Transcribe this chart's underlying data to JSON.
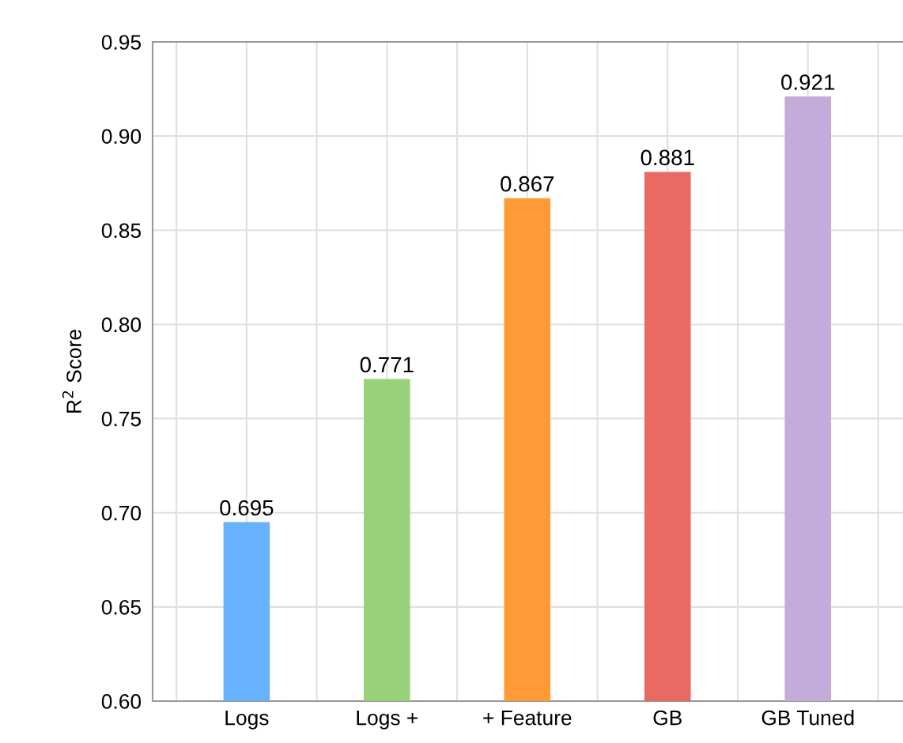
{
  "chart_data": {
    "type": "bar",
    "ylabel": "R$^{2}$ Score",
    "categories": [
      "Logs",
      "Logs +",
      "+ Feature",
      "GB",
      "GB Tuned"
    ],
    "values": [
      0.695,
      0.771,
      0.867,
      0.881,
      0.921
    ],
    "colors": [
      "#66b2ff",
      "#99d17a",
      "#ff9a35",
      "#e86a63",
      "#c3acd9"
    ],
    "data_labels": true,
    "ylim": [
      0.6,
      0.95
    ],
    "yticks": [
      {
        "value": 0.6,
        "label": "0.60"
      },
      {
        "value": 0.65,
        "label": "0.65"
      },
      {
        "value": 0.7,
        "label": "0.70"
      },
      {
        "value": 0.75,
        "label": "0.75"
      },
      {
        "value": 0.8,
        "label": "0.80"
      },
      {
        "value": 0.85,
        "label": "0.85"
      },
      {
        "value": 0.9,
        "label": "0.90"
      },
      {
        "value": 0.95,
        "label": "0.95"
      }
    ],
    "grid": true
  }
}
